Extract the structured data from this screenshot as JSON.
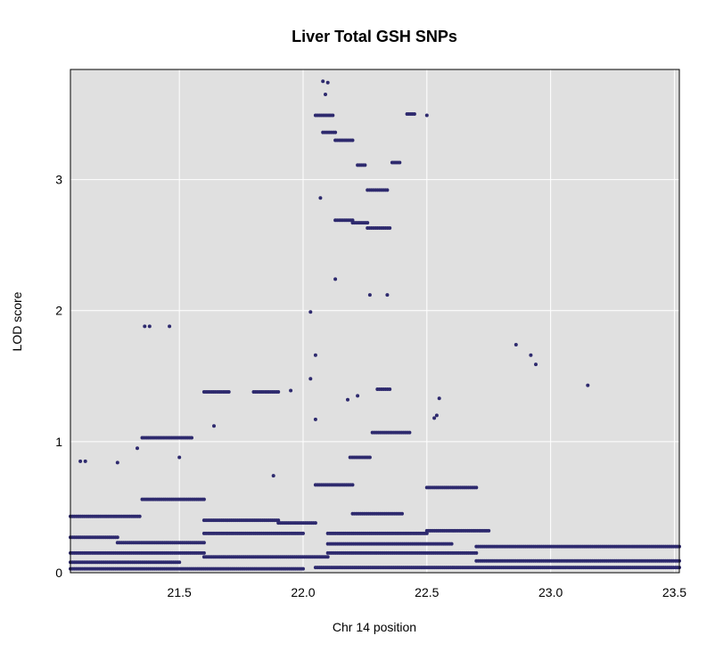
{
  "chart_data": {
    "type": "scatter",
    "title": "Liver Total GSH SNPs",
    "xlabel": "Chr 14 position",
    "ylabel": "LOD score",
    "xlim": [
      21.06,
      23.52
    ],
    "ylim": [
      0,
      3.84
    ],
    "xticks": [
      "21.5",
      "22.0",
      "22.5",
      "23.0",
      "23.5"
    ],
    "yticks": [
      "0",
      "1",
      "2",
      "3"
    ],
    "grid": true,
    "point_color": "#2e2a6e",
    "panel_color": "#e0e0e0",
    "segments": [
      {
        "x": [
          21.06,
          21.34
        ],
        "y": 0.43
      },
      {
        "x": [
          21.35,
          21.6
        ],
        "y": 0.56
      },
      {
        "x": [
          21.6,
          21.9
        ],
        "y": 0.4
      },
      {
        "x": [
          21.9,
          22.05
        ],
        "y": 0.38
      },
      {
        "x": [
          21.06,
          21.25
        ],
        "y": 0.27
      },
      {
        "x": [
          21.25,
          21.6
        ],
        "y": 0.23
      },
      {
        "x": [
          21.6,
          22.0
        ],
        "y": 0.3
      },
      {
        "x": [
          21.06,
          21.6
        ],
        "y": 0.15
      },
      {
        "x": [
          21.6,
          22.1
        ],
        "y": 0.12
      },
      {
        "x": [
          21.06,
          21.5
        ],
        "y": 0.08
      },
      {
        "x": [
          21.06,
          22.0
        ],
        "y": 0.03
      },
      {
        "x": [
          21.35,
          21.55
        ],
        "y": 1.03
      },
      {
        "x": [
          21.6,
          21.7
        ],
        "y": 1.38
      },
      {
        "x": [
          21.8,
          21.9
        ],
        "y": 1.38
      },
      {
        "x": [
          22.05,
          22.12
        ],
        "y": 3.49
      },
      {
        "x": [
          22.08,
          22.13
        ],
        "y": 3.36
      },
      {
        "x": [
          22.13,
          22.2
        ],
        "y": 3.3
      },
      {
        "x": [
          22.22,
          22.25
        ],
        "y": 3.11
      },
      {
        "x": [
          22.36,
          22.39
        ],
        "y": 3.13
      },
      {
        "x": [
          22.42,
          22.45
        ],
        "y": 3.5
      },
      {
        "x": [
          22.26,
          22.34
        ],
        "y": 2.92
      },
      {
        "x": [
          22.13,
          22.2
        ],
        "y": 2.69
      },
      {
        "x": [
          22.2,
          22.26
        ],
        "y": 2.67
      },
      {
        "x": [
          22.26,
          22.35
        ],
        "y": 2.63
      },
      {
        "x": [
          22.3,
          22.35
        ],
        "y": 1.4
      },
      {
        "x": [
          22.28,
          22.43
        ],
        "y": 1.07
      },
      {
        "x": [
          22.19,
          22.27
        ],
        "y": 0.88
      },
      {
        "x": [
          22.05,
          22.2
        ],
        "y": 0.67
      },
      {
        "x": [
          22.2,
          22.4
        ],
        "y": 0.45
      },
      {
        "x": [
          22.1,
          22.5
        ],
        "y": 0.3
      },
      {
        "x": [
          22.5,
          22.75
        ],
        "y": 0.32
      },
      {
        "x": [
          22.1,
          22.7
        ],
        "y": 0.15
      },
      {
        "x": [
          22.7,
          23.52
        ],
        "y": 0.2
      },
      {
        "x": [
          22.5,
          22.7
        ],
        "y": 0.65
      },
      {
        "x": [
          22.05,
          23.52
        ],
        "y": 0.04
      },
      {
        "x": [
          22.7,
          23.52
        ],
        "y": 0.09
      },
      {
        "x": [
          22.1,
          22.6
        ],
        "y": 0.22
      }
    ],
    "scattered_points": [
      {
        "x": 22.08,
        "y": 3.75
      },
      {
        "x": 22.1,
        "y": 3.74
      },
      {
        "x": 22.09,
        "y": 3.65
      },
      {
        "x": 22.5,
        "y": 3.49
      },
      {
        "x": 22.07,
        "y": 2.86
      },
      {
        "x": 21.36,
        "y": 1.88
      },
      {
        "x": 21.38,
        "y": 1.88
      },
      {
        "x": 21.46,
        "y": 1.88
      },
      {
        "x": 22.03,
        "y": 1.99
      },
      {
        "x": 22.13,
        "y": 2.24
      },
      {
        "x": 22.27,
        "y": 2.12
      },
      {
        "x": 22.34,
        "y": 2.12
      },
      {
        "x": 22.86,
        "y": 1.74
      },
      {
        "x": 22.92,
        "y": 1.66
      },
      {
        "x": 22.94,
        "y": 1.59
      },
      {
        "x": 23.15,
        "y": 1.43
      },
      {
        "x": 22.05,
        "y": 1.66
      },
      {
        "x": 22.03,
        "y": 1.48
      },
      {
        "x": 21.95,
        "y": 1.39
      },
      {
        "x": 22.55,
        "y": 1.33
      },
      {
        "x": 22.05,
        "y": 1.17
      },
      {
        "x": 21.64,
        "y": 1.12
      },
      {
        "x": 21.33,
        "y": 0.95
      },
      {
        "x": 21.1,
        "y": 0.85
      },
      {
        "x": 21.12,
        "y": 0.85
      },
      {
        "x": 21.25,
        "y": 0.84
      },
      {
        "x": 21.5,
        "y": 0.88
      },
      {
        "x": 21.88,
        "y": 0.74
      },
      {
        "x": 22.53,
        "y": 1.18
      },
      {
        "x": 22.54,
        "y": 1.2
      },
      {
        "x": 22.18,
        "y": 1.32
      },
      {
        "x": 22.22,
        "y": 1.35
      }
    ]
  }
}
